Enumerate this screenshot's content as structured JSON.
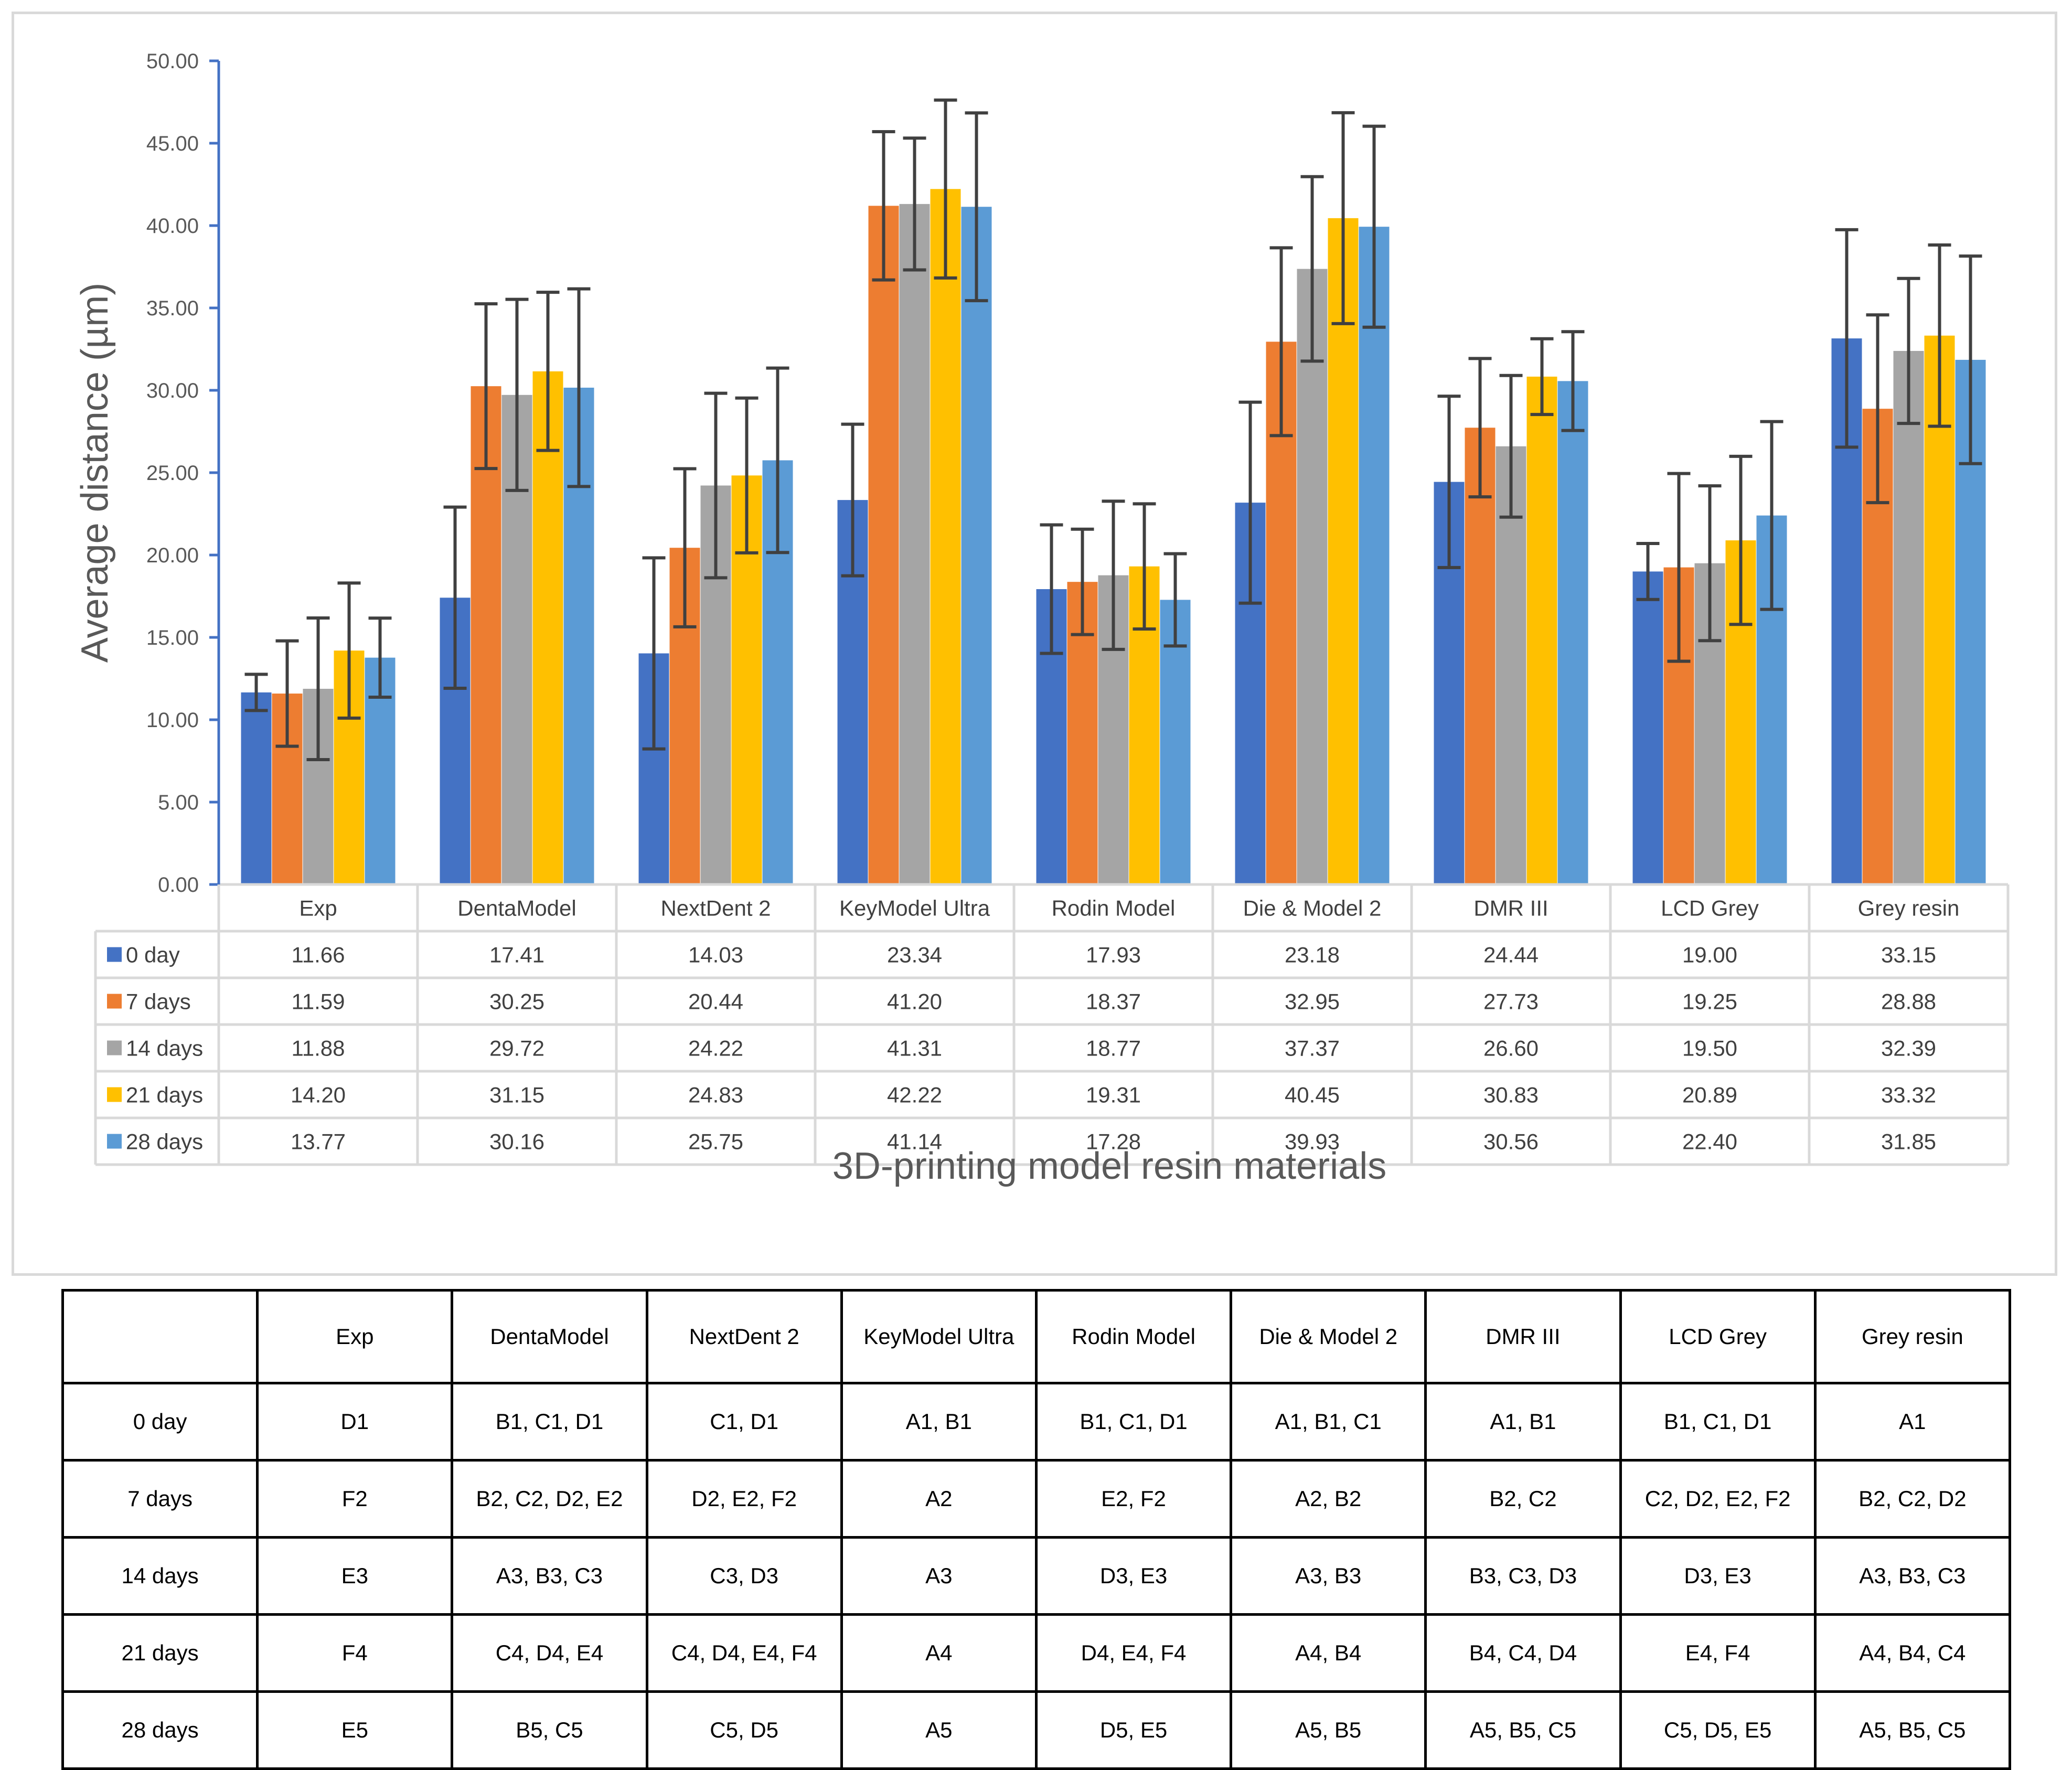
{
  "chart_data": {
    "type": "bar",
    "title": "",
    "xlabel": "3D-printing model resin materials",
    "ylabel": "Average distance (µm)",
    "ylim": [
      0,
      50
    ],
    "yticks": [
      "0.00",
      "5.00",
      "10.00",
      "15.00",
      "20.00",
      "25.00",
      "30.00",
      "35.00",
      "40.00",
      "45.00",
      "50.00"
    ],
    "categories": [
      "Exp",
      "DentaModel",
      "NextDent 2",
      "KeyModel Ultra",
      "Rodin Model",
      "Die & Model 2",
      "DMR III",
      "LCD Grey",
      "Grey resin"
    ],
    "series": [
      {
        "name": "0 day",
        "color": "#4472c4",
        "values": [
          11.66,
          17.41,
          14.03,
          23.34,
          17.93,
          23.18,
          24.44,
          19.0,
          33.15
        ],
        "labels": [
          "11.66",
          "17.41",
          "14.03",
          "23.34",
          "17.93",
          "23.18",
          "24.44",
          "19.00",
          "33.15"
        ],
        "error": [
          1.1,
          5.5,
          5.8,
          4.6,
          3.9,
          6.1,
          5.2,
          1.7,
          6.6
        ]
      },
      {
        "name": "7 days",
        "color": "#ed7d31",
        "values": [
          11.59,
          30.25,
          20.44,
          41.2,
          18.37,
          32.95,
          27.73,
          19.25,
          28.88
        ],
        "labels": [
          "11.59",
          "30.25",
          "20.44",
          "41.20",
          "18.37",
          "32.95",
          "27.73",
          "19.25",
          "28.88"
        ],
        "error": [
          3.2,
          5.0,
          4.8,
          4.5,
          3.2,
          5.7,
          4.2,
          5.7,
          5.7
        ]
      },
      {
        "name": "14 days",
        "color": "#a5a5a5",
        "values": [
          11.88,
          29.72,
          24.22,
          41.31,
          18.77,
          37.37,
          26.6,
          19.5,
          32.39
        ],
        "labels": [
          "11.88",
          "29.72",
          "24.22",
          "41.31",
          "18.77",
          "37.37",
          "26.60",
          "19.50",
          "32.39"
        ],
        "error": [
          4.3,
          5.8,
          5.6,
          4.0,
          4.5,
          5.6,
          4.3,
          4.7,
          4.4
        ]
      },
      {
        "name": "21 days",
        "color": "#ffc000",
        "values": [
          14.2,
          31.15,
          24.83,
          42.22,
          19.31,
          40.45,
          30.83,
          20.89,
          33.32
        ],
        "labels": [
          "14.20",
          "31.15",
          "24.83",
          "42.22",
          "19.31",
          "40.45",
          "30.83",
          "20.89",
          "33.32"
        ],
        "error": [
          4.1,
          4.8,
          4.7,
          5.4,
          3.8,
          6.4,
          2.3,
          5.1,
          5.5
        ]
      },
      {
        "name": "28 days",
        "color": "#5b9bd5",
        "values": [
          13.77,
          30.16,
          25.75,
          41.14,
          17.28,
          39.93,
          30.56,
          22.4,
          31.85
        ],
        "labels": [
          "13.77",
          "30.16",
          "25.75",
          "41.14",
          "17.28",
          "39.93",
          "30.56",
          "22.40",
          "31.85"
        ],
        "error": [
          2.4,
          6.0,
          5.6,
          5.7,
          2.8,
          6.1,
          3.0,
          5.7,
          6.3
        ]
      }
    ],
    "legend": "data-table-left",
    "grid": false
  },
  "letters_table": {
    "header": [
      "",
      "Exp",
      "DentaModel",
      "NextDent 2",
      "KeyModel Ultra",
      "Rodin Model",
      "Die & Model 2",
      "DMR III",
      "LCD Grey",
      "Grey resin"
    ],
    "rows": [
      [
        "0 day",
        "D1",
        "B1, C1, D1",
        "C1, D1",
        "A1, B1",
        "B1, C1, D1",
        "A1, B1, C1",
        "A1, B1",
        "B1, C1, D1",
        "A1"
      ],
      [
        "7 days",
        "F2",
        "B2, C2, D2, E2",
        "D2, E2, F2",
        "A2",
        "E2, F2",
        "A2, B2",
        "B2, C2",
        "C2, D2, E2, F2",
        "B2, C2, D2"
      ],
      [
        "14 days",
        "E3",
        "A3, B3, C3",
        "C3, D3",
        "A3",
        "D3, E3",
        "A3, B3",
        "B3, C3, D3",
        "D3, E3",
        "A3, B3, C3"
      ],
      [
        "21 days",
        "F4",
        "C4, D4, E4",
        "C4, D4, E4, F4",
        "A4",
        "D4, E4, F4",
        "A4, B4",
        "B4, C4, D4",
        "E4, F4",
        "A4, B4, C4"
      ],
      [
        "28 days",
        "E5",
        "B5, C5",
        "C5, D5",
        "A5",
        "D5, E5",
        "A5, B5",
        "A5, B5, C5",
        "C5, D5, E5",
        "A5, B5, C5"
      ]
    ]
  }
}
